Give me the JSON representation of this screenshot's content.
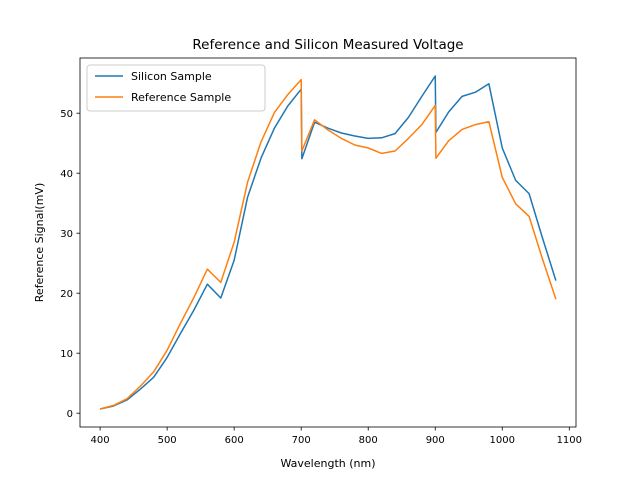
{
  "chart_data": {
    "type": "line",
    "title": "Reference and Silicon Measured Voltage",
    "xlabel": "Wavelength (nm)",
    "ylabel": "Reference Signal(mV)",
    "xlim": [
      370,
      1110
    ],
    "ylim": [
      -2.3,
      59.2
    ],
    "xticks": [
      400,
      500,
      600,
      700,
      800,
      900,
      1000,
      1100
    ],
    "yticks": [
      0,
      10,
      20,
      30,
      40,
      50
    ],
    "grid": false,
    "legend_position": "top-left",
    "x": [
      400,
      420,
      440,
      460,
      480,
      500,
      520,
      540,
      560,
      580,
      600,
      620,
      640,
      660,
      680,
      700,
      701,
      720,
      740,
      760,
      780,
      800,
      820,
      840,
      860,
      880,
      900,
      901,
      920,
      940,
      960,
      980,
      1000,
      1020,
      1040,
      1060,
      1080
    ],
    "series": [
      {
        "name": "Silicon Sample",
        "color": "#1f77b4",
        "values": [
          0.7,
          1.2,
          2.2,
          4.0,
          6.0,
          9.3,
          13.3,
          17.2,
          21.5,
          19.2,
          25.5,
          36.0,
          42.5,
          47.5,
          51.2,
          54.0,
          42.4,
          48.5,
          47.5,
          46.7,
          46.2,
          45.8,
          45.9,
          46.6,
          49.3,
          52.8,
          56.2,
          46.8,
          50.2,
          52.8,
          53.5,
          54.9,
          44.2,
          38.8,
          36.6,
          29.2,
          22.1
        ]
      },
      {
        "name": "Reference Sample",
        "color": "#ff7f0e",
        "values": [
          0.7,
          1.3,
          2.4,
          4.5,
          6.9,
          10.5,
          15.0,
          19.3,
          24.0,
          21.8,
          28.5,
          38.5,
          45.2,
          50.1,
          53.1,
          55.6,
          43.7,
          48.9,
          47.2,
          45.8,
          44.7,
          44.2,
          43.3,
          43.7,
          45.8,
          48.1,
          51.3,
          42.5,
          45.4,
          47.3,
          48.1,
          48.6,
          39.3,
          34.9,
          32.8,
          25.7,
          19.0
        ]
      }
    ]
  }
}
